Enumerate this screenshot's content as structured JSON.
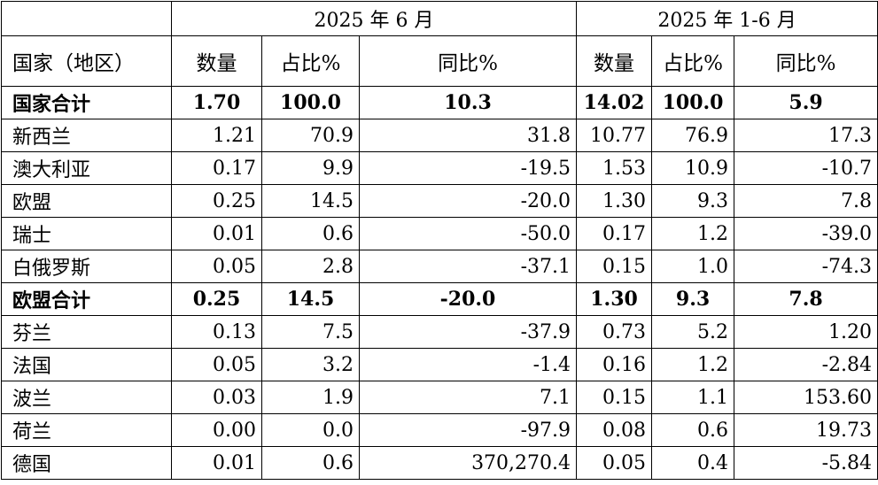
{
  "header": {
    "period_month": "2025 年 6 月",
    "period_ytd": "2025 年 1-6 月",
    "col_region": "国家（地区）",
    "col_qty": "数量",
    "col_share": "占比%",
    "col_yoy": "同比%"
  },
  "rows": [
    {
      "name": "国家合计",
      "qty": "1.70",
      "share": "100.0",
      "yoy": "10.3",
      "ytd_qty": "14.02",
      "ytd_share": "100.0",
      "ytd_yoy": "5.9"
    },
    {
      "name": "新西兰",
      "qty": "1.21",
      "share": "70.9",
      "yoy": "31.8",
      "ytd_qty": "10.77",
      "ytd_share": "76.9",
      "ytd_yoy": "17.3"
    },
    {
      "name": "澳大利亚",
      "qty": "0.17",
      "share": "9.9",
      "yoy": "-19.5",
      "ytd_qty": "1.53",
      "ytd_share": "10.9",
      "ytd_yoy": "-10.7"
    },
    {
      "name": "欧盟",
      "qty": "0.25",
      "share": "14.5",
      "yoy": "-20.0",
      "ytd_qty": "1.30",
      "ytd_share": "9.3",
      "ytd_yoy": "7.8"
    },
    {
      "name": "瑞士",
      "qty": "0.01",
      "share": "0.6",
      "yoy": "-50.0",
      "ytd_qty": "0.17",
      "ytd_share": "1.2",
      "ytd_yoy": "-39.0"
    },
    {
      "name": "白俄罗斯",
      "qty": "0.05",
      "share": "2.8",
      "yoy": "-37.1",
      "ytd_qty": "0.15",
      "ytd_share": "1.0",
      "ytd_yoy": "-74.3"
    },
    {
      "name": "欧盟合计",
      "qty": "0.25",
      "share": "14.5",
      "yoy": "-20.0",
      "ytd_qty": "1.30",
      "ytd_share": "9.3",
      "ytd_yoy": "7.8"
    },
    {
      "name": "芬兰",
      "qty": "0.13",
      "share": "7.5",
      "yoy": "-37.9",
      "ytd_qty": "0.73",
      "ytd_share": "5.2",
      "ytd_yoy": "1.20"
    },
    {
      "name": "法国",
      "qty": "0.05",
      "share": "3.2",
      "yoy": "-1.4",
      "ytd_qty": "0.16",
      "ytd_share": "1.2",
      "ytd_yoy": "-2.84"
    },
    {
      "name": "波兰",
      "qty": "0.03",
      "share": "1.9",
      "yoy": "7.1",
      "ytd_qty": "0.15",
      "ytd_share": "1.1",
      "ytd_yoy": "153.60"
    },
    {
      "name": "荷兰",
      "qty": "0.00",
      "share": "0.0",
      "yoy": "-97.9",
      "ytd_qty": "0.08",
      "ytd_share": "0.6",
      "ytd_yoy": "19.73"
    },
    {
      "name": "德国",
      "qty": "0.01",
      "share": "0.6",
      "yoy": "370,270.4",
      "ytd_qty": "0.05",
      "ytd_share": "0.4",
      "ytd_yoy": "-5.84"
    }
  ]
}
